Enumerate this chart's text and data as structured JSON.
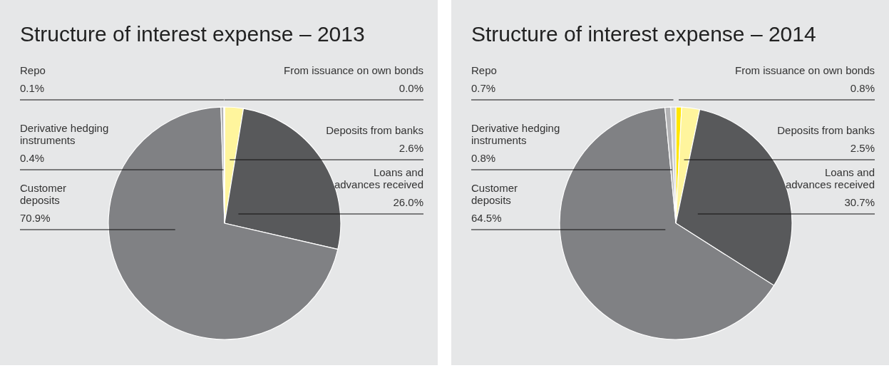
{
  "chart_data": [
    {
      "type": "pie",
      "title": "Structure of interest expense – 2013",
      "categories": [
        "From issuance on own bonds",
        "Deposits from banks",
        "Loans and advances received",
        "Customer deposits",
        "Derivative hedging instruments",
        "Repo"
      ],
      "values": [
        0.0,
        2.6,
        26.0,
        70.9,
        0.4,
        0.1
      ],
      "value_labels": [
        "0.0%",
        "2.6%",
        "26.0%",
        "70.9%",
        "0.4%",
        "0.1%"
      ],
      "colors": [
        "#ffe600",
        "#fff59d",
        "#58595b",
        "#808184",
        "#b3b3b5",
        "#d1d2d4"
      ]
    },
    {
      "type": "pie",
      "title": "Structure of interest expense – 2014",
      "categories": [
        "From issuance on own bonds",
        "Deposits from banks",
        "Loans and advances received",
        "Customer deposits",
        "Derivative hedging instruments",
        "Repo"
      ],
      "values": [
        0.8,
        2.5,
        30.7,
        64.5,
        0.8,
        0.7
      ],
      "value_labels": [
        "0.8%",
        "2.5%",
        "30.7%",
        "64.5%",
        "0.8%",
        "0.7%"
      ],
      "colors": [
        "#ffe600",
        "#fff59d",
        "#58595b",
        "#808184",
        "#b3b3b5",
        "#d1d2d4"
      ]
    }
  ]
}
